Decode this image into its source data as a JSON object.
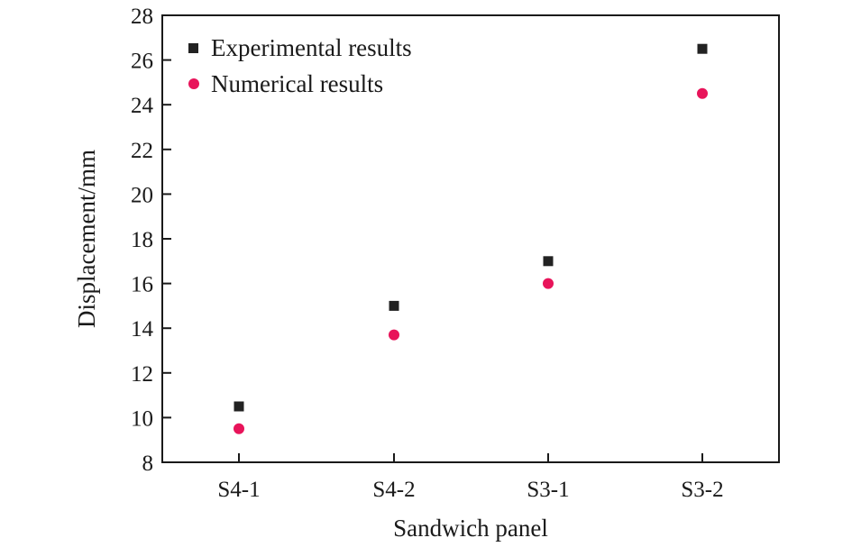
{
  "chart_data": {
    "type": "scatter",
    "categories": [
      "S4-1",
      "S4-2",
      "S3-1",
      "S3-2"
    ],
    "series": [
      {
        "name": "Experimental results",
        "values": [
          10.5,
          15.0,
          17.0,
          26.5
        ],
        "marker": "square",
        "color": "#222222"
      },
      {
        "name": "Numerical results",
        "values": [
          9.5,
          13.7,
          16.0,
          24.5
        ],
        "marker": "circle",
        "color": "#e8145a"
      }
    ],
    "xlabel": "Sandwich panel",
    "ylabel": "Displacement/mm",
    "ylim": [
      8,
      28
    ],
    "yticks": [
      8,
      10,
      12,
      14,
      16,
      18,
      20,
      22,
      24,
      26,
      28
    ],
    "grid": false,
    "legend_position": "top-left"
  }
}
